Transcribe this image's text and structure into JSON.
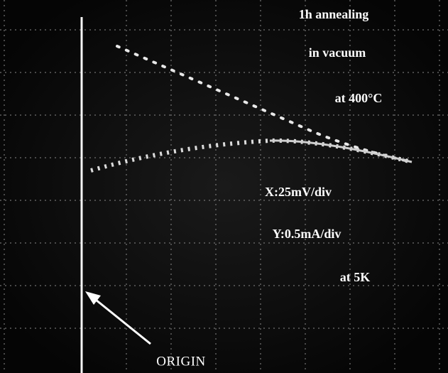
{
  "conditions": [
    "1h annealing",
    "in vacuum",
    "at 400°C"
  ],
  "scales": [
    "X:25mV/div",
    "Y:0.5mA/div",
    "at 5K"
  ],
  "origin_label": "ORIGIN"
}
